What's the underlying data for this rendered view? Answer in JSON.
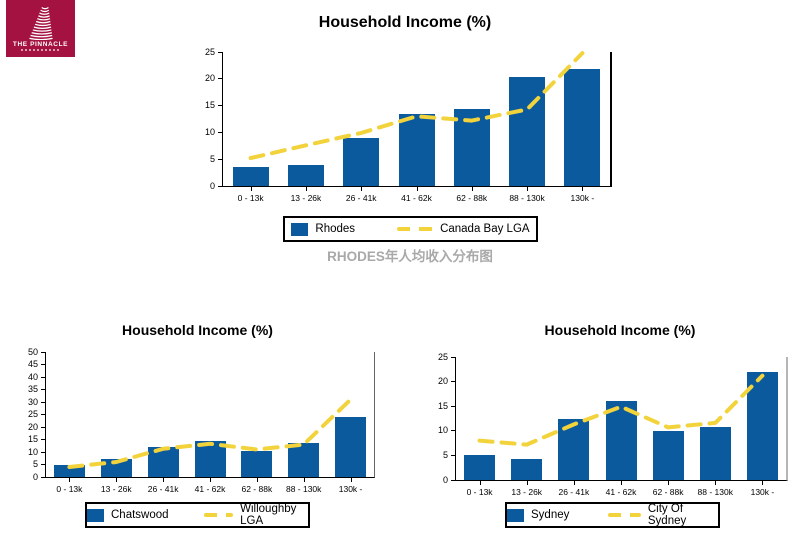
{
  "logo": {
    "name": "THE PINNACLE"
  },
  "caption": "RHODES年人均收入分布图",
  "colors": {
    "bar": "#0b5a9e",
    "line": "#f2d33c",
    "logo_bg": "#a31240",
    "caption_text": "#a9a9a9",
    "axis": "#000000"
  },
  "chart_data": [
    {
      "type": "bar",
      "title": "Household Income (%)",
      "categories": [
        "0 - 13k",
        "13 - 26k",
        "26 - 41k",
        "41 - 62k",
        "62 - 88k",
        "88 - 130k",
        "130k -"
      ],
      "series": [
        {
          "name": "Rhodes",
          "kind": "bar",
          "values": [
            3.6,
            3.9,
            9.0,
            13.4,
            14.4,
            20.3,
            21.9
          ]
        },
        {
          "name": "Canada Bay LGA",
          "kind": "line",
          "values": [
            5.2,
            7.6,
            9.9,
            13.0,
            12.2,
            14.3,
            24.8
          ]
        }
      ],
      "ylim": [
        0,
        25
      ],
      "ytick_step": 5,
      "grid": false,
      "legend_position": "bottom"
    },
    {
      "type": "bar",
      "title": "Household Income (%)",
      "categories": [
        "0 - 13k",
        "13 - 26k",
        "26 - 41k",
        "41 - 62k",
        "62 - 88k",
        "88 - 130k",
        "130k -"
      ],
      "series": [
        {
          "name": "Chatswood",
          "kind": "bar",
          "values": [
            4.7,
            7.3,
            12.0,
            14.3,
            10.6,
            13.6,
            24.0
          ]
        },
        {
          "name": "Willoughby LGA",
          "kind": "line",
          "values": [
            4.0,
            6.0,
            11.3,
            13.3,
            11.0,
            13.0,
            31.0
          ]
        }
      ],
      "ylim": [
        0,
        50
      ],
      "ytick_step": 5,
      "grid": false,
      "legend_position": "bottom"
    },
    {
      "type": "bar",
      "title": "Household Income (%)",
      "categories": [
        "0 - 13k",
        "13 - 26k",
        "26 - 41k",
        "41 - 62k",
        "62 - 88k",
        "88 - 130k",
        "130k -"
      ],
      "series": [
        {
          "name": "Sydney",
          "kind": "bar",
          "values": [
            5.0,
            4.3,
            12.3,
            16.1,
            10.0,
            10.8,
            22.0
          ]
        },
        {
          "name": "City Of Sydney",
          "kind": "line",
          "values": [
            8.0,
            7.2,
            11.3,
            14.9,
            10.7,
            11.6,
            21.2
          ]
        }
      ],
      "ylim": [
        0,
        25
      ],
      "ytick_step": 5,
      "grid": false,
      "legend_position": "bottom"
    }
  ]
}
